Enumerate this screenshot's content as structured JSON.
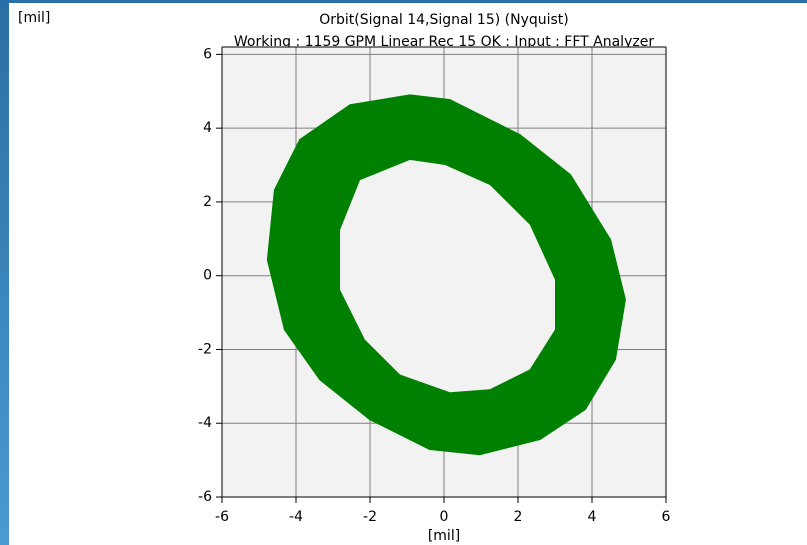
{
  "chart_data": {
    "type": "orbit",
    "title": "Orbit(Signal 14,Signal 15) (Nyquist)",
    "subtitle": "Working : 1159 GPM Linear Rec 15 OK : Input : FFT Analyzer",
    "ylabel": "[mil]",
    "xlabel": "[mil]",
    "xlim": [
      -6,
      6
    ],
    "ylim": [
      -6,
      6.2
    ],
    "xticks": [
      -6,
      -4,
      -2,
      0,
      2,
      4,
      6
    ],
    "yticks": [
      -6,
      -4,
      -2,
      0,
      2,
      4,
      6
    ],
    "grid": true,
    "series": [
      {
        "color": "#008000",
        "x": [
          -0.92,
          0.16,
          2.05,
          3.41,
          4.49,
          4.89,
          4.62,
          3.81,
          2.59,
          0.97,
          -0.38,
          -2.0,
          -3.35,
          -4.3,
          -4.76,
          -4.57,
          -3.89,
          -2.54
        ],
        "y": [
          4.89,
          4.76,
          3.81,
          2.73,
          0.97,
          -0.65,
          -2.27,
          -3.62,
          -4.43,
          -4.84,
          -4.7,
          -3.89,
          -2.81,
          -1.46,
          0.43,
          2.32,
          3.68,
          4.62
        ]
      },
      {
        "color": "#f2f2f2",
        "x": [
          -0.92,
          0.03,
          1.24,
          2.32,
          3.0,
          3.0,
          2.32,
          1.24,
          0.16,
          -1.19,
          -2.14,
          -2.81,
          -2.81,
          -2.27
        ],
        "y": [
          3.14,
          3.0,
          2.46,
          1.38,
          -0.11,
          -1.46,
          -2.54,
          -3.08,
          -3.16,
          -2.68,
          -1.73,
          -0.38,
          1.24,
          2.59
        ]
      }
    ]
  }
}
